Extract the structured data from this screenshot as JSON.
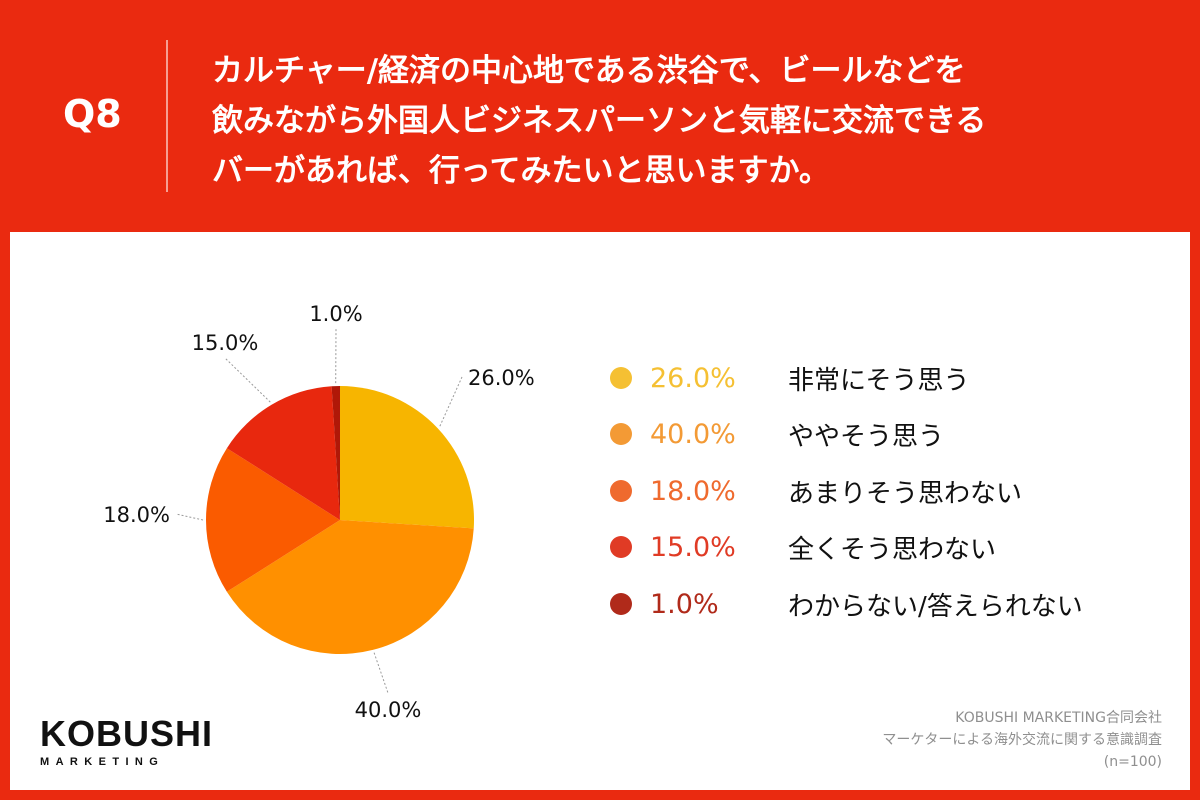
{
  "header": {
    "qnum": "Q8",
    "question_lines": [
      "カルチャー/経済の中心地である渋谷で、ビールなどを",
      "飲みながら外国人ビジネスパーソンと気軽に交流できる",
      "バーがあれば、行ってみたいと思いますか。"
    ],
    "background_color": "#ea2a10"
  },
  "chart_data": {
    "type": "pie",
    "start": "12 o'clock, clockwise",
    "slices": [
      {
        "label": "非常にそう思う",
        "value": 26.0,
        "value_label": "26.0%",
        "color": "#f7b500",
        "legend_color": "#f5c033"
      },
      {
        "label": "ややそう思う",
        "value": 40.0,
        "value_label": "40.0%",
        "color": "#ff9000",
        "legend_color": "#f39a35"
      },
      {
        "label": "あまりそう思わない",
        "value": 18.0,
        "value_label": "18.0%",
        "color": "#fa5b00",
        "legend_color": "#ef6a2e"
      },
      {
        "label": "全くそう思わない",
        "value": 15.0,
        "value_label": "15.0%",
        "color": "#e8280e",
        "legend_color": "#e03b25"
      },
      {
        "label": "わからない/答えられない",
        "value": 1.0,
        "value_label": "1.0%",
        "color": "#b01808",
        "legend_color": "#b02a1a"
      }
    ],
    "legend_placement": "right"
  },
  "logo": {
    "main": "KOBUSHI",
    "sub": "MARKETING"
  },
  "credit": {
    "lines": [
      "KOBUSHI MARKETING合同会社",
      "マーケターによる海外交流に関する意識調査",
      "(n=100)"
    ]
  }
}
